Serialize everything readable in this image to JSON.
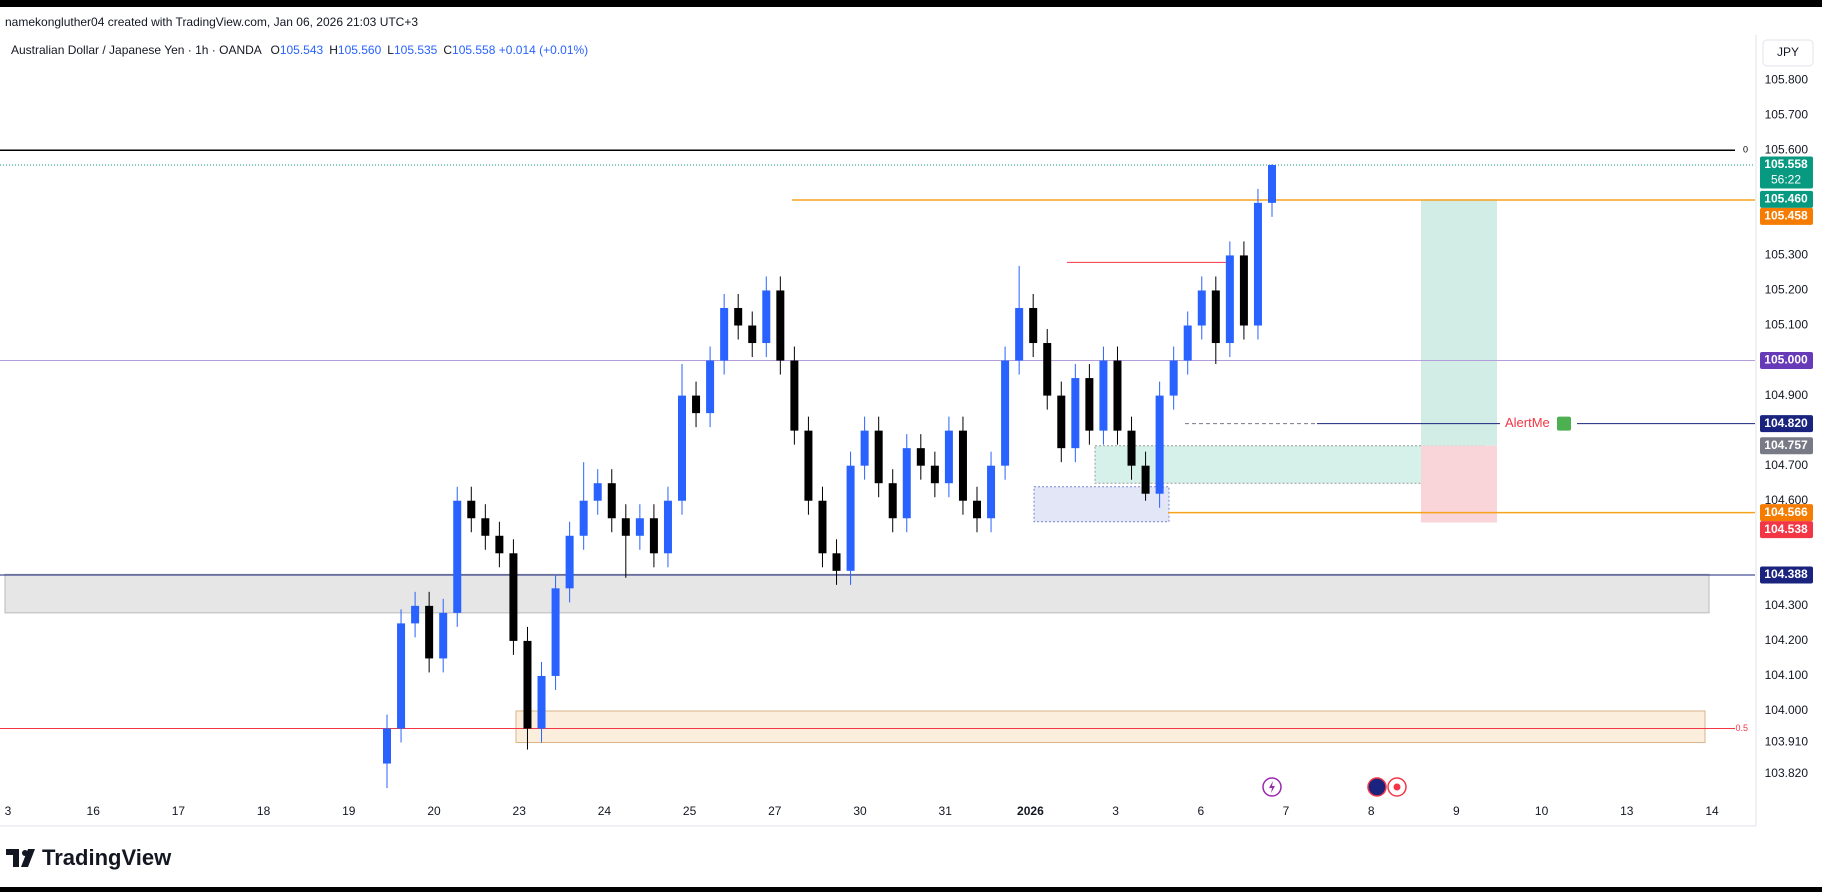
{
  "header": {
    "attribution": "namekongluther04 created with TradingView.com, Jan 06, 2026 21:03 UTC+3",
    "symbol": "Australian Dollar / Japanese Yen · 1h · OANDA",
    "ohlc": [
      {
        "key": "O",
        "value": "105.543"
      },
      {
        "key": "H",
        "value": "105.560"
      },
      {
        "key": "L",
        "value": "105.535"
      },
      {
        "key": "C",
        "value": "105.558"
      }
    ],
    "change": "+0.014 (+0.01%)",
    "currency": "JPY",
    "brand": "TradingView"
  },
  "chart_data": {
    "type": "candlestick",
    "categories": [
      "3",
      "16",
      "17",
      "18",
      "19",
      "20",
      "23",
      "24",
      "25",
      "27",
      "30",
      "31",
      "2026",
      "3",
      "6",
      "7",
      "8",
      "9",
      "10",
      "13",
      "14"
    ],
    "ylim": [
      103.746,
      105.929
    ],
    "yticks": [
      {
        "value": 105.8,
        "label": "105.800"
      },
      {
        "value": 105.7,
        "label": "105.700"
      },
      {
        "value": 105.6,
        "label": "105.600"
      },
      {
        "value": 105.3,
        "label": "105.300"
      },
      {
        "value": 105.2,
        "label": "105.200"
      },
      {
        "value": 105.1,
        "label": "105.100"
      },
      {
        "value": 104.9,
        "label": "104.900"
      },
      {
        "value": 104.7,
        "label": "104.700"
      },
      {
        "value": 104.6,
        "label": "104.600"
      },
      {
        "value": 104.3,
        "label": "104.300"
      },
      {
        "value": 104.2,
        "label": "104.200"
      },
      {
        "value": 104.1,
        "label": "104.100"
      },
      {
        "value": 104.0,
        "label": "104.000"
      },
      {
        "value": 103.91,
        "label": "103.910"
      },
      {
        "value": 103.82,
        "label": "103.820"
      }
    ],
    "up_color": "#2962ff",
    "down_color": "#000000",
    "open": [
      103.85,
      103.95,
      104.25,
      104.3,
      104.15,
      104.28,
      104.6,
      104.55,
      104.5,
      104.45,
      104.2,
      103.95,
      104.1,
      104.35,
      104.5,
      104.6,
      104.65,
      104.55,
      104.5,
      104.55,
      104.45,
      104.6,
      104.9,
      104.85,
      105.0,
      105.15,
      105.1,
      105.05,
      105.2,
      105.0,
      104.8,
      104.6,
      104.45,
      104.4,
      104.7,
      104.8,
      104.65,
      104.55,
      104.75,
      104.7,
      104.65,
      104.8,
      104.6,
      104.55,
      104.7,
      105.0,
      105.15,
      105.05,
      104.9,
      104.75,
      104.95,
      104.8,
      105.0,
      104.8,
      104.7,
      104.62,
      104.9,
      105.0,
      105.1,
      105.2,
      105.05,
      105.3,
      105.1,
      105.45
    ],
    "high": [
      103.99,
      104.29,
      104.34,
      104.34,
      104.32,
      104.64,
      104.64,
      104.59,
      104.54,
      104.49,
      104.24,
      104.14,
      104.39,
      104.54,
      104.71,
      104.69,
      104.69,
      104.59,
      104.59,
      104.59,
      104.64,
      104.99,
      104.94,
      105.04,
      105.19,
      105.19,
      105.14,
      105.24,
      105.24,
      105.04,
      104.84,
      104.64,
      104.49,
      104.74,
      104.84,
      104.84,
      104.69,
      104.79,
      104.79,
      104.74,
      104.84,
      104.84,
      104.64,
      104.74,
      105.04,
      105.27,
      105.19,
      105.09,
      104.94,
      104.99,
      104.99,
      105.04,
      105.04,
      104.84,
      104.74,
      104.94,
      105.04,
      105.14,
      105.24,
      105.24,
      105.34,
      105.34,
      105.49,
      105.56
    ],
    "low": [
      103.78,
      103.91,
      104.21,
      104.11,
      104.11,
      104.24,
      104.51,
      104.46,
      104.41,
      104.16,
      103.89,
      103.91,
      104.06,
      104.31,
      104.46,
      104.56,
      104.51,
      104.38,
      104.46,
      104.41,
      104.41,
      104.56,
      104.81,
      104.81,
      104.96,
      105.06,
      105.01,
      105.01,
      104.96,
      104.76,
      104.56,
      104.41,
      104.36,
      104.36,
      104.66,
      104.61,
      104.51,
      104.51,
      104.66,
      104.61,
      104.61,
      104.56,
      104.51,
      104.51,
      104.66,
      104.96,
      105.01,
      104.86,
      104.71,
      104.71,
      104.76,
      104.76,
      104.76,
      104.66,
      104.6,
      104.58,
      104.86,
      104.96,
      105.06,
      104.99,
      105.01,
      105.06,
      105.06,
      105.41
    ],
    "close": [
      103.95,
      104.25,
      104.3,
      104.15,
      104.28,
      104.6,
      104.55,
      104.5,
      104.45,
      104.2,
      103.95,
      104.1,
      104.35,
      104.5,
      104.6,
      104.65,
      104.55,
      104.5,
      104.55,
      104.45,
      104.6,
      104.9,
      104.85,
      105.0,
      105.15,
      105.1,
      105.05,
      105.2,
      105.0,
      104.8,
      104.6,
      104.45,
      104.4,
      104.7,
      104.8,
      104.65,
      104.55,
      104.75,
      104.7,
      104.65,
      104.8,
      104.6,
      104.55,
      104.7,
      105.0,
      105.15,
      105.05,
      104.9,
      104.75,
      104.95,
      104.8,
      105.0,
      104.8,
      104.7,
      104.62,
      104.9,
      105.0,
      105.1,
      105.2,
      105.05,
      105.3,
      105.1,
      105.45,
      105.558
    ],
    "levels": [
      {
        "value": 105.6,
        "color": "#000000",
        "label": "0"
      },
      {
        "value": 103.95,
        "color": "#f23645",
        "label": "0.5"
      },
      {
        "value": 105.458,
        "color": "#f7a21b"
      },
      {
        "value": 105.0,
        "color": "#b39ddb"
      },
      {
        "value": 104.388,
        "color": "#1a237e"
      },
      {
        "value": 104.566,
        "color": "#f7a21b"
      },
      {
        "value": 105.28,
        "color": "#f23645"
      },
      {
        "value": 104.82,
        "color": "#1a237e",
        "label": "AlertMe"
      }
    ],
    "zones": [
      {
        "low": 104.28,
        "high": 104.39,
        "color": "#e6e6e6"
      },
      {
        "low": 103.91,
        "high": 104.0,
        "color": "#fbeedd"
      },
      {
        "low": 104.54,
        "high": 104.64,
        "color": "#e3e6f7"
      },
      {
        "low": 104.65,
        "high": 104.757,
        "color": "#d6f1ea"
      },
      {
        "low": 104.757,
        "high": 105.46,
        "color": "#d1ede6"
      },
      {
        "low": 104.538,
        "high": 104.757,
        "color": "#f9d4d8"
      }
    ],
    "price_labels": [
      {
        "value": 105.558,
        "label": "105.558",
        "color": "#089981",
        "countdown": "56:22"
      },
      {
        "value": 105.46,
        "label": "105.460",
        "color": "#089981"
      },
      {
        "value": 105.458,
        "label": "105.458",
        "color": "#f57c00"
      },
      {
        "value": 105.0,
        "label": "105.000",
        "color": "#673ab7"
      },
      {
        "value": 104.82,
        "label": "104.820",
        "color": "#1a237e"
      },
      {
        "value": 104.757,
        "label": "104.757",
        "color": "#787b86"
      },
      {
        "value": 104.566,
        "label": "104.566",
        "color": "#f57c00"
      },
      {
        "value": 104.538,
        "label": "104.538",
        "color": "#f23645"
      },
      {
        "value": 104.388,
        "label": "104.388",
        "color": "#1a237e"
      }
    ]
  }
}
